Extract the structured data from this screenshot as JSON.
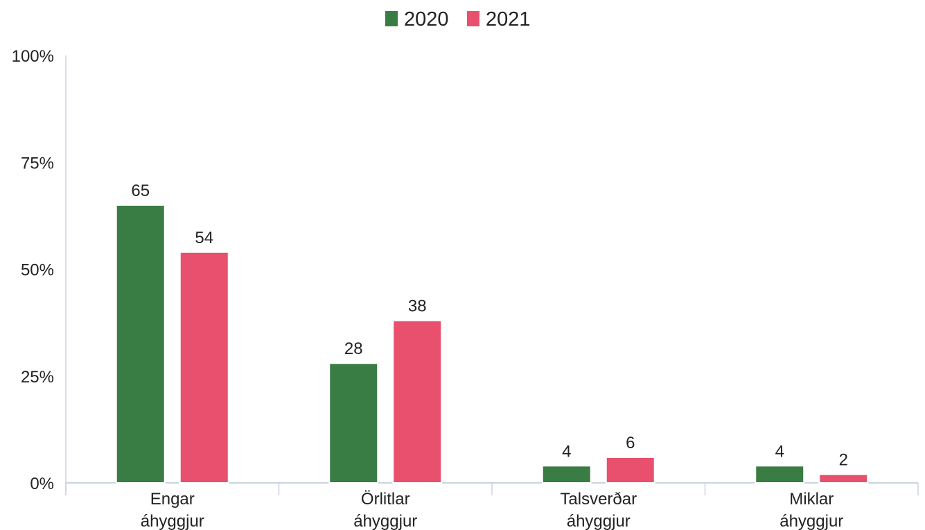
{
  "chart_data": {
    "type": "bar",
    "categories": [
      [
        "Engar",
        "áhyggjur"
      ],
      [
        "Örlitlar",
        "áhyggjur"
      ],
      [
        "Talsverðar",
        "áhyggjur"
      ],
      [
        "Miklar",
        "áhyggjur"
      ]
    ],
    "series": [
      {
        "name": "2020",
        "color": "#3a7d44",
        "values": [
          65,
          28,
          4,
          4
        ]
      },
      {
        "name": "2021",
        "color": "#e8506e",
        "values": [
          54,
          38,
          6,
          2
        ]
      }
    ],
    "ylim": [
      0,
      100
    ],
    "yticks": [
      0,
      25,
      50,
      75,
      100
    ],
    "ytick_labels": [
      "0%",
      "25%",
      "50%",
      "75%",
      "100%"
    ],
    "grid": false,
    "legend_position": "top-center",
    "data_labels": true
  }
}
